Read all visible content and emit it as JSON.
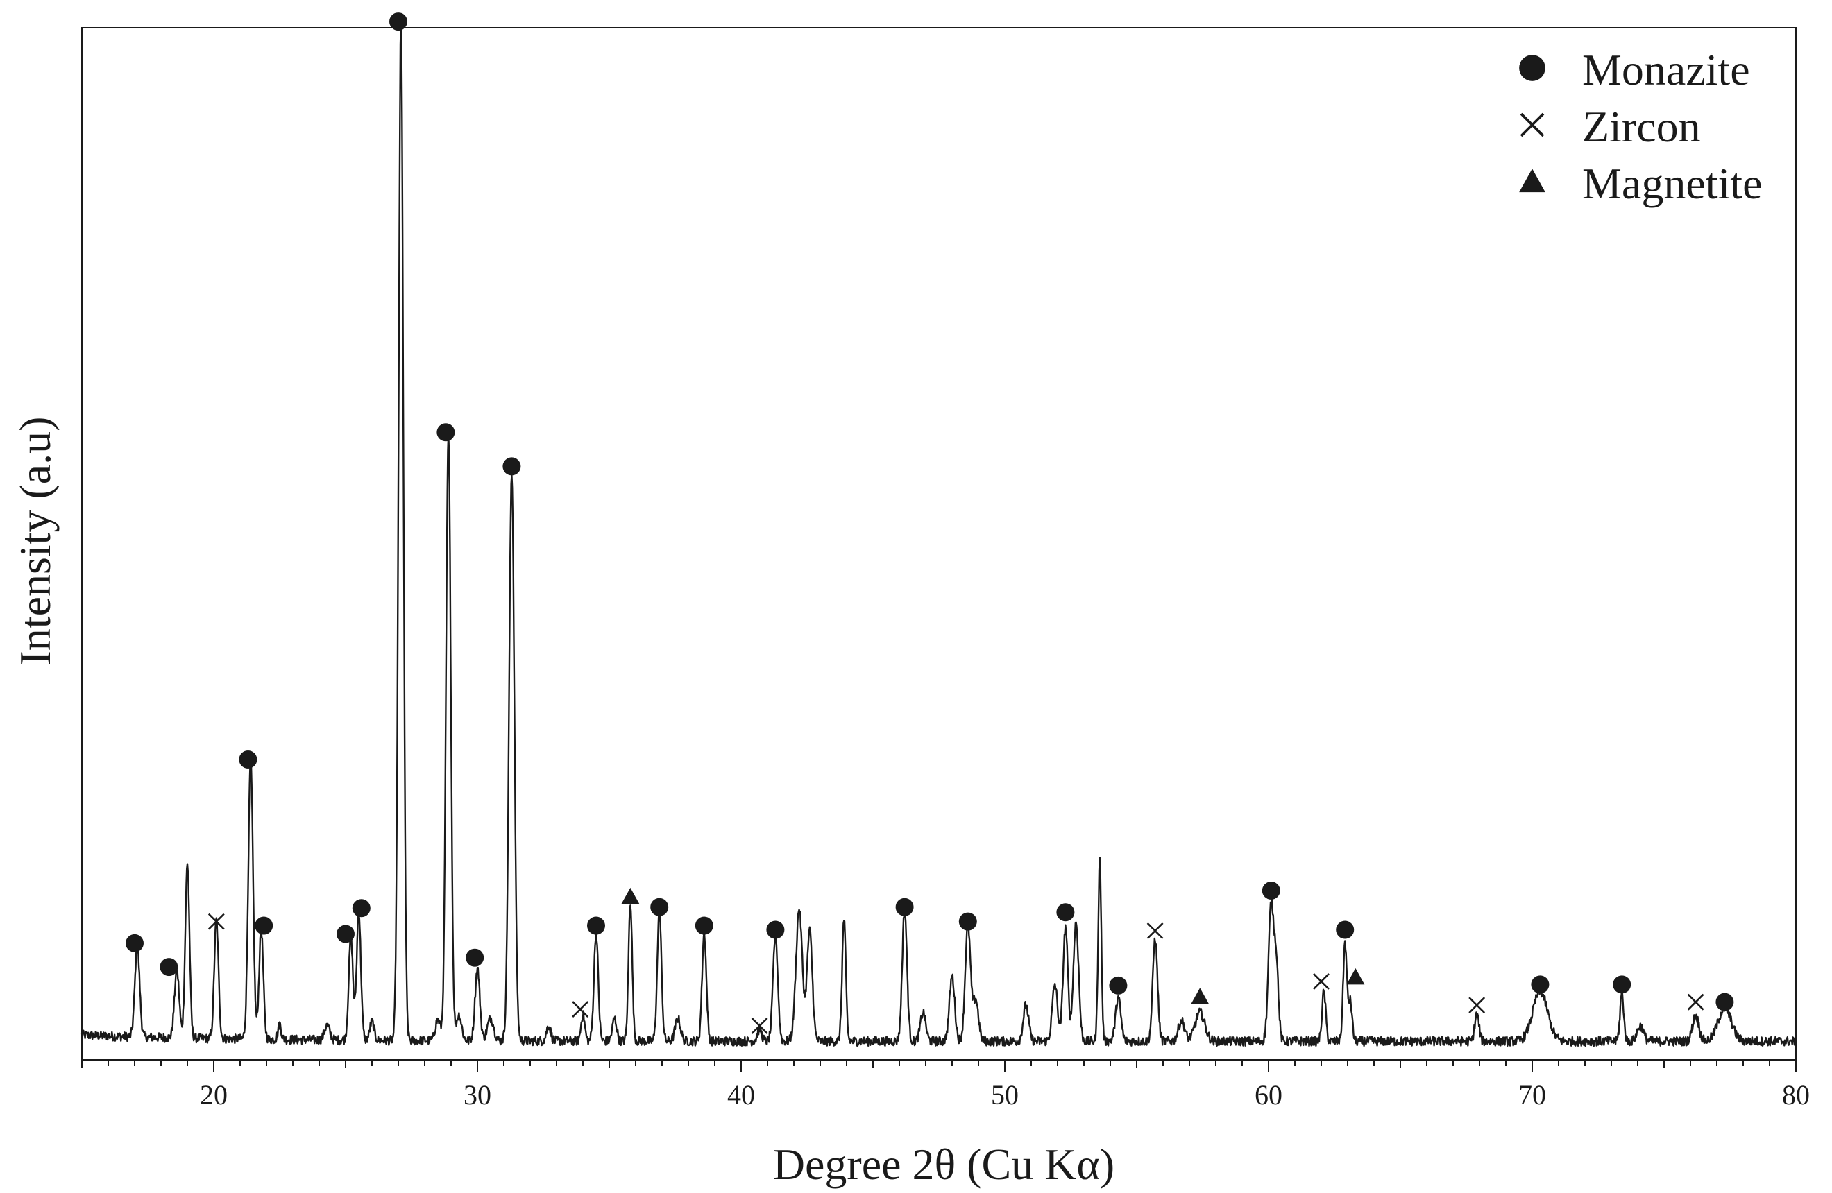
{
  "chart_data": {
    "type": "line",
    "xlabel": "Degree 2θ (Cu Kα)",
    "ylabel": "Intensity (a.u)",
    "xlim": [
      15,
      80
    ],
    "ylim": [
      0,
      100
    ],
    "x_ticks": [
      20,
      30,
      40,
      50,
      60,
      70,
      80
    ],
    "y_ticks_shown": false,
    "grid": false,
    "legend_position": "top-right",
    "legend": [
      {
        "name": "Monazite",
        "marker": "circle"
      },
      {
        "name": "Zircon",
        "marker": "x"
      },
      {
        "name": "Magnetite",
        "marker": "triangle"
      }
    ],
    "line_color": "#1a1a1a",
    "background": 1.8,
    "peaks": [
      {
        "x": 17.1,
        "h": 8.7,
        "w": 0.09,
        "phase": "Monazite"
      },
      {
        "x": 18.6,
        "h": 6.5,
        "w": 0.09,
        "phase": "Monazite"
      },
      {
        "x": 19.0,
        "h": 16.8,
        "w": 0.08
      },
      {
        "x": 20.1,
        "h": 11.5,
        "w": 0.08,
        "phase": "Zircon"
      },
      {
        "x": 21.4,
        "h": 27.0,
        "w": 0.09,
        "phase": "Monazite"
      },
      {
        "x": 21.8,
        "h": 10.6,
        "w": 0.08,
        "phase": "Monazite"
      },
      {
        "x": 22.5,
        "h": 1.5,
        "w": 0.06
      },
      {
        "x": 24.3,
        "h": 1.4,
        "w": 0.1
      },
      {
        "x": 25.2,
        "h": 10.0,
        "w": 0.08,
        "phase": "Monazite"
      },
      {
        "x": 25.5,
        "h": 12.4,
        "w": 0.08,
        "phase": "Monazite"
      },
      {
        "x": 26.0,
        "h": 1.8,
        "w": 0.08
      },
      {
        "x": 27.1,
        "h": 98.5,
        "w": 0.09,
        "phase": "Monazite"
      },
      {
        "x": 28.5,
        "h": 2.0,
        "w": 0.1
      },
      {
        "x": 28.9,
        "h": 58.5,
        "w": 0.09,
        "phase": "Monazite"
      },
      {
        "x": 29.3,
        "h": 2.5,
        "w": 0.1
      },
      {
        "x": 30.0,
        "h": 7.0,
        "w": 0.09,
        "phase": "Monazite"
      },
      {
        "x": 30.5,
        "h": 2.2,
        "w": 0.12
      },
      {
        "x": 31.3,
        "h": 55.0,
        "w": 0.1,
        "phase": "Monazite"
      },
      {
        "x": 32.7,
        "h": 1.5,
        "w": 0.08
      },
      {
        "x": 34.0,
        "h": 2.6,
        "w": 0.07,
        "phase": "Zircon"
      },
      {
        "x": 34.5,
        "h": 10.5,
        "w": 0.08,
        "phase": "Monazite"
      },
      {
        "x": 35.2,
        "h": 2.2,
        "w": 0.08
      },
      {
        "x": 35.8,
        "h": 13.5,
        "w": 0.07,
        "phase": "Magnetite"
      },
      {
        "x": 36.9,
        "h": 12.5,
        "w": 0.08,
        "phase": "Monazite"
      },
      {
        "x": 37.6,
        "h": 2.2,
        "w": 0.1
      },
      {
        "x": 38.6,
        "h": 10.5,
        "w": 0.08,
        "phase": "Monazite"
      },
      {
        "x": 40.7,
        "h": 1.2,
        "w": 0.08,
        "phase": "Zircon"
      },
      {
        "x": 41.3,
        "h": 10.3,
        "w": 0.09,
        "phase": "Monazite"
      },
      {
        "x": 42.2,
        "h": 12.8,
        "w": 0.12
      },
      {
        "x": 42.6,
        "h": 10.7,
        "w": 0.1
      },
      {
        "x": 43.9,
        "h": 11.8,
        "w": 0.07
      },
      {
        "x": 46.2,
        "h": 12.8,
        "w": 0.09,
        "phase": "Monazite"
      },
      {
        "x": 46.9,
        "h": 2.8,
        "w": 0.1
      },
      {
        "x": 48.0,
        "h": 6.3,
        "w": 0.1
      },
      {
        "x": 48.6,
        "h": 11.3,
        "w": 0.1,
        "phase": "Monazite"
      },
      {
        "x": 48.9,
        "h": 4.0,
        "w": 0.1
      },
      {
        "x": 50.8,
        "h": 3.5,
        "w": 0.1
      },
      {
        "x": 51.9,
        "h": 5.5,
        "w": 0.1
      },
      {
        "x": 52.3,
        "h": 11.0,
        "w": 0.09,
        "phase": "Monazite"
      },
      {
        "x": 52.7,
        "h": 11.5,
        "w": 0.1
      },
      {
        "x": 53.6,
        "h": 17.5,
        "w": 0.06
      },
      {
        "x": 54.3,
        "h": 4.2,
        "w": 0.1,
        "phase": "Monazite"
      },
      {
        "x": 55.7,
        "h": 10.0,
        "w": 0.09,
        "phase": "Zircon"
      },
      {
        "x": 56.7,
        "h": 2.0,
        "w": 0.12
      },
      {
        "x": 57.4,
        "h": 2.8,
        "w": 0.18,
        "phase": "Magnetite"
      },
      {
        "x": 60.1,
        "h": 13.3,
        "w": 0.1,
        "phase": "Monazite"
      },
      {
        "x": 60.3,
        "h": 7.0,
        "w": 0.08
      },
      {
        "x": 62.1,
        "h": 4.8,
        "w": 0.07,
        "phase": "Zircon"
      },
      {
        "x": 62.9,
        "h": 9.5,
        "w": 0.07,
        "phase": "Monazite"
      },
      {
        "x": 63.1,
        "h": 3.8,
        "w": 0.07,
        "phase": "Magnetite"
      },
      {
        "x": 67.9,
        "h": 2.6,
        "w": 0.08,
        "phase": "Zircon"
      },
      {
        "x": 70.3,
        "h": 4.8,
        "w": 0.28,
        "phase": "Monazite"
      },
      {
        "x": 73.4,
        "h": 4.6,
        "w": 0.07,
        "phase": "Monazite"
      },
      {
        "x": 74.1,
        "h": 1.5,
        "w": 0.12
      },
      {
        "x": 76.2,
        "h": 2.5,
        "w": 0.12,
        "phase": "Zircon"
      },
      {
        "x": 77.3,
        "h": 3.2,
        "w": 0.25,
        "phase": "Monazite"
      }
    ],
    "markers": [
      {
        "phase": "Monazite",
        "x": 17.0,
        "y": 11.3
      },
      {
        "phase": "Monazite",
        "x": 18.3,
        "y": 9.0
      },
      {
        "phase": "Zircon",
        "x": 20.1,
        "y": 13.4
      },
      {
        "phase": "Monazite",
        "x": 21.3,
        "y": 29.1
      },
      {
        "phase": "Monazite",
        "x": 21.9,
        "y": 13.0
      },
      {
        "phase": "Monazite",
        "x": 25.0,
        "y": 12.2
      },
      {
        "phase": "Monazite",
        "x": 25.6,
        "y": 14.7
      },
      {
        "phase": "Monazite",
        "x": 27.0,
        "y": 100.6
      },
      {
        "phase": "Monazite",
        "x": 28.8,
        "y": 60.8
      },
      {
        "phase": "Monazite",
        "x": 29.9,
        "y": 9.9
      },
      {
        "phase": "Monazite",
        "x": 31.3,
        "y": 57.5
      },
      {
        "phase": "Zircon",
        "x": 33.9,
        "y": 4.9
      },
      {
        "phase": "Monazite",
        "x": 34.5,
        "y": 13.0
      },
      {
        "phase": "Magnetite",
        "x": 35.8,
        "y": 15.8
      },
      {
        "phase": "Monazite",
        "x": 36.9,
        "y": 14.8
      },
      {
        "phase": "Monazite",
        "x": 38.6,
        "y": 13.0
      },
      {
        "phase": "Zircon",
        "x": 40.7,
        "y": 3.3
      },
      {
        "phase": "Monazite",
        "x": 41.3,
        "y": 12.6
      },
      {
        "phase": "Monazite",
        "x": 46.2,
        "y": 14.8
      },
      {
        "phase": "Monazite",
        "x": 48.6,
        "y": 13.4
      },
      {
        "phase": "Monazite",
        "x": 52.3,
        "y": 14.3
      },
      {
        "phase": "Monazite",
        "x": 54.3,
        "y": 7.2
      },
      {
        "phase": "Zircon",
        "x": 55.7,
        "y": 12.5
      },
      {
        "phase": "Magnetite",
        "x": 57.4,
        "y": 6.1
      },
      {
        "phase": "Monazite",
        "x": 60.1,
        "y": 16.4
      },
      {
        "phase": "Zircon",
        "x": 62.0,
        "y": 7.6
      },
      {
        "phase": "Monazite",
        "x": 62.9,
        "y": 12.6
      },
      {
        "phase": "Magnetite",
        "x": 63.3,
        "y": 8.0
      },
      {
        "phase": "Zircon",
        "x": 67.9,
        "y": 5.3
      },
      {
        "phase": "Monazite",
        "x": 70.3,
        "y": 7.3
      },
      {
        "phase": "Monazite",
        "x": 73.4,
        "y": 7.3
      },
      {
        "phase": "Zircon",
        "x": 76.2,
        "y": 5.6
      },
      {
        "phase": "Monazite",
        "x": 77.3,
        "y": 5.6
      }
    ]
  }
}
